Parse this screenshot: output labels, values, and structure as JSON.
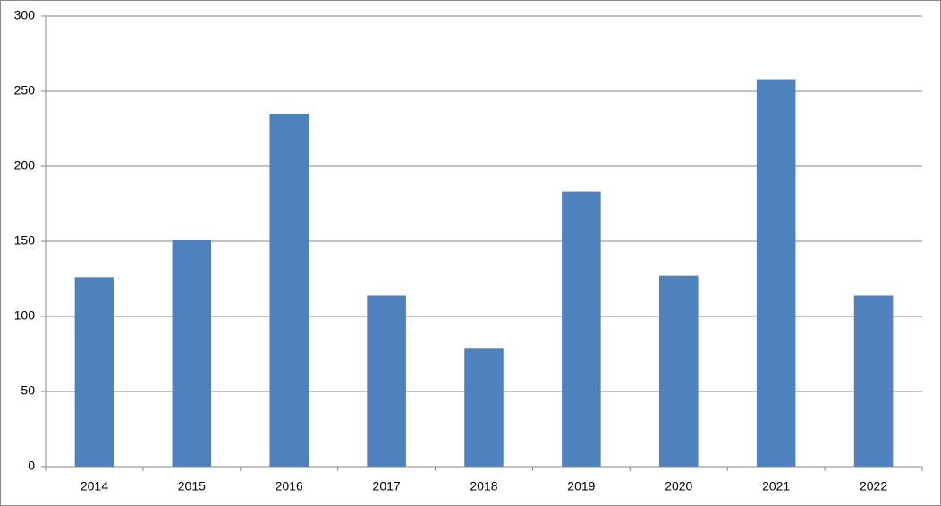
{
  "chart_data": {
    "type": "bar",
    "categories": [
      "2014",
      "2015",
      "2016",
      "2017",
      "2018",
      "2019",
      "2020",
      "2021",
      "2022"
    ],
    "values": [
      126,
      151,
      235,
      114,
      79,
      183,
      127,
      258,
      114
    ],
    "color": "#4f81bd",
    "ylim": [
      0,
      300
    ],
    "yticks": [
      0,
      50,
      100,
      150,
      200,
      250,
      300
    ],
    "grid": true
  }
}
